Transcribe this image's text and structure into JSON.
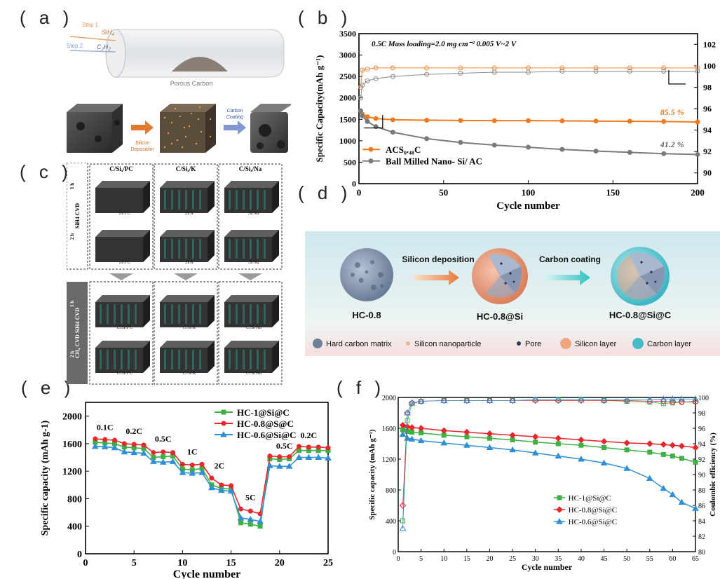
{
  "panel_labels": {
    "a": "( a )",
    "b": "( b )",
    "c": "( c )",
    "d": "( d )",
    "e": "( e )",
    "f": "( f )"
  },
  "panel_a": {
    "step1": "Step 1",
    "step2": "Step 2",
    "sih4": "SiH",
    "sih4_sub": "4",
    "c2h2_c": "C",
    "c2h2_sub1": "2",
    "c2h2_h": "H",
    "c2h2_sub2": "2",
    "porous_carbon": "Porous Carbon",
    "silicon_deposition_1": "Silicon",
    "silicon_deposition_2": "Deposition",
    "carbon_coating_1": "Carbon",
    "carbon_coating_2": "Coating"
  },
  "panel_c": {
    "col_titles": [
      "C/Siₓ/PC",
      "C/Siₓ/K",
      "C/Siₓ/Na"
    ],
    "top_side": "SiH4 CVD",
    "bottom_side": "CH₄ CVD   SiH4 CVD",
    "row_1h": "1 h",
    "row_2h": "2 h",
    "top_labels_1h": [
      "Si/PC",
      "Si/K",
      "Si/Na"
    ],
    "top_labels_2h": [
      "Si/PC",
      "Si/K",
      "Si/Na"
    ],
    "bottom_labels_1h": [
      "C/Si/PC",
      "C/Si/K",
      "C/Si/Na"
    ],
    "bottom_labels_2h": [
      "C/Si/PC",
      "C/Si/K",
      "C/Si/Na"
    ]
  },
  "panel_d": {
    "hc": "HC-0.8",
    "hc_si": "HC-0.8@Si",
    "hc_si_c": "HC-0.8@Si@C",
    "step1": "Silicon deposition",
    "step2": "Carbon coating",
    "legend": [
      "Hard carbon matrix",
      "Silicon nanoparticle",
      "Pore",
      "Silicon layer",
      "Carbon layer"
    ]
  },
  "chart_data": [
    {
      "id": "b",
      "type": "line",
      "xlabel": "Cycle number",
      "ylabel": "Specific Capacity(mAh g⁻¹)",
      "xlim": [
        0,
        200
      ],
      "ylim": [
        0,
        3500
      ],
      "y2lim": [
        89,
        103
      ],
      "xticks": [
        "0",
        "50",
        "100",
        "150",
        "200"
      ],
      "yticks": [
        "0",
        "500",
        "1000",
        "1500",
        "2000",
        "2500",
        "3000",
        "3500"
      ],
      "y2ticks": [
        "90",
        "92",
        "94",
        "96",
        "98",
        "100",
        "102"
      ],
      "annotation": "0.5C   Mass loading=2.0 mg cm⁻²   0.005 V~2 V",
      "retention_labels": [
        "85.5 %",
        "41.2 %"
      ],
      "legend": [
        "ACS₀.₄₈C",
        "Ball Milled Nano- Si/ AC"
      ],
      "series": [
        {
          "name": "ACS0.48C capacity",
          "x": [
            1,
            2,
            5,
            10,
            20,
            40,
            60,
            80,
            100,
            120,
            140,
            160,
            180,
            200
          ],
          "values": [
            1700,
            1620,
            1560,
            1520,
            1490,
            1480,
            1475,
            1470,
            1470,
            1465,
            1460,
            1455,
            1450,
            1440
          ]
        },
        {
          "name": "Ball Milled capacity",
          "x": [
            1,
            2,
            5,
            10,
            20,
            40,
            60,
            80,
            100,
            120,
            140,
            160,
            180,
            200
          ],
          "values": [
            1700,
            1580,
            1450,
            1330,
            1200,
            1050,
            960,
            900,
            850,
            800,
            760,
            730,
            700,
            680
          ]
        },
        {
          "name": "ACS0.48C CE",
          "x": [
            1,
            2,
            5,
            10,
            20,
            40,
            60,
            80,
            100,
            120,
            140,
            160,
            180,
            200
          ],
          "values": [
            98.0,
            99.6,
            99.7,
            99.8,
            99.8,
            99.8,
            99.8,
            99.8,
            99.8,
            99.8,
            99.8,
            99.8,
            99.8,
            99.8
          ]
        },
        {
          "name": "Ball Milled CE",
          "x": [
            1,
            2,
            5,
            10,
            20,
            40,
            60,
            80,
            100,
            120,
            140,
            160,
            180,
            200
          ],
          "values": [
            97.0,
            98.2,
            98.6,
            98.8,
            99.0,
            99.2,
            99.3,
            99.4,
            99.4,
            99.5,
            99.5,
            99.5,
            99.5,
            99.5
          ]
        }
      ]
    },
    {
      "id": "e",
      "type": "line",
      "xlabel": "Cycle number",
      "ylabel": "Specific capacity (mAh g-1)",
      "xlim": [
        0,
        25
      ],
      "ylim": [
        0,
        2200
      ],
      "xticks": [
        "0",
        "5",
        "10",
        "15",
        "20",
        "25"
      ],
      "yticks": [
        "0",
        "400",
        "800",
        "1200",
        "1600",
        "2000"
      ],
      "rate_labels": [
        "0.1C",
        "0.2C",
        "0.5C",
        "1C",
        "2C",
        "5C",
        "0.5C",
        "0.2C"
      ],
      "legend": [
        "HC-1@Si@C",
        "HC-0.8@S@C",
        "HC-0.6@Si@C"
      ],
      "colors": [
        "#3cb043",
        "#e8262c",
        "#2f8fd6"
      ],
      "x": [
        1,
        2,
        3,
        4,
        5,
        6,
        7,
        8,
        9,
        10,
        11,
        12,
        13,
        14,
        15,
        16,
        17,
        18,
        19,
        20,
        21,
        22,
        23,
        24,
        25
      ],
      "series": [
        {
          "name": "HC-1@Si@C",
          "values": [
            1620,
            1610,
            1600,
            1550,
            1540,
            1530,
            1400,
            1410,
            1420,
            1230,
            1220,
            1240,
            1000,
            950,
            940,
            450,
            430,
            400,
            1380,
            1370,
            1380,
            1500,
            1500,
            1500,
            1500
          ]
        },
        {
          "name": "HC-0.8@S@C",
          "values": [
            1670,
            1660,
            1650,
            1600,
            1590,
            1580,
            1470,
            1480,
            1470,
            1300,
            1290,
            1300,
            1100,
            1000,
            990,
            650,
            620,
            580,
            1420,
            1410,
            1410,
            1560,
            1550,
            1550,
            1540
          ]
        },
        {
          "name": "HC-0.6@Si@C",
          "values": [
            1560,
            1555,
            1540,
            1480,
            1470,
            1460,
            1340,
            1330,
            1340,
            1180,
            1170,
            1180,
            960,
            920,
            910,
            520,
            500,
            470,
            1280,
            1270,
            1270,
            1400,
            1400,
            1400,
            1390
          ]
        }
      ]
    },
    {
      "id": "f",
      "type": "line",
      "xlabel": "Cycle number",
      "ylabel": "Specific capacity (mAh g⁻¹)",
      "y2label": "Coulombic efficiency (%)",
      "xlim": [
        0,
        65
      ],
      "ylim": [
        0,
        2000
      ],
      "y2lim": [
        80,
        100
      ],
      "xticks": [
        "0",
        "5",
        "10",
        "15",
        "20",
        "25",
        "30",
        "35",
        "40",
        "45",
        "50",
        "55",
        "60",
        "65"
      ],
      "yticks": [
        "0",
        "400",
        "800",
        "1200",
        "1600",
        "2000"
      ],
      "y2ticks": [
        "80",
        "82",
        "84",
        "86",
        "88",
        "90",
        "92",
        "94",
        "96",
        "98",
        "100"
      ],
      "legend": [
        "HC-1@Si@C",
        "HC-0.8@Si@C",
        "HC-0.6@Si@C"
      ],
      "colors": [
        "#3cb043",
        "#e8262c",
        "#2f8fd6"
      ],
      "x": [
        1,
        2,
        3,
        5,
        10,
        15,
        20,
        25,
        30,
        35,
        40,
        45,
        50,
        55,
        58,
        60,
        62,
        65
      ],
      "series": [
        {
          "name": "HC-1@Si@C",
          "values": [
            1580,
            1560,
            1550,
            1540,
            1510,
            1490,
            1470,
            1450,
            1420,
            1400,
            1380,
            1350,
            1320,
            1290,
            1260,
            1240,
            1210,
            1160
          ]
        },
        {
          "name": "HC-0.8@Si@C",
          "values": [
            1640,
            1620,
            1610,
            1600,
            1570,
            1550,
            1530,
            1510,
            1490,
            1470,
            1450,
            1430,
            1410,
            1400,
            1390,
            1380,
            1370,
            1350
          ]
        },
        {
          "name": "HC-0.6@Si@C",
          "values": [
            1520,
            1470,
            1460,
            1440,
            1410,
            1380,
            1350,
            1320,
            1280,
            1240,
            1200,
            1150,
            1080,
            950,
            820,
            740,
            640,
            560
          ]
        },
        {
          "name": "HC-1@Si@C CE",
          "values": [
            84,
            97,
            99.2,
            99.5,
            99.6,
            99.6,
            99.6,
            99.6,
            99.7,
            99.7,
            99.7,
            99.6,
            99.5,
            99.4,
            99.2,
            99.3,
            99.4,
            99.5
          ]
        },
        {
          "name": "HC-0.8@Si@C CE",
          "values": [
            86,
            98,
            99.3,
            99.5,
            99.6,
            99.6,
            99.6,
            99.6,
            99.6,
            99.6,
            99.6,
            99.6,
            99.6,
            99.5,
            99.5,
            99.4,
            99.4,
            99.4
          ]
        },
        {
          "name": "HC-0.6@Si@C CE",
          "values": [
            83,
            98,
            99.3,
            99.5,
            99.6,
            99.6,
            99.6,
            99.6,
            99.7,
            99.7,
            99.7,
            99.7,
            99.7,
            99.7,
            99.8,
            99.8,
            99.8,
            99.8
          ]
        }
      ]
    }
  ]
}
